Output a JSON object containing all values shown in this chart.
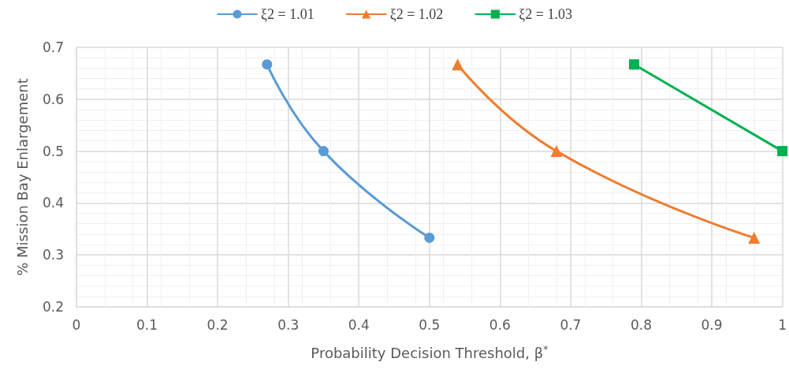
{
  "chart_data": {
    "type": "line",
    "xlabel": "Probability Decision Threshold, β$^{*}$",
    "ylabel": "% Mission Bay Enlargement",
    "xlim": [
      0,
      1
    ],
    "xticks": [
      0,
      0.1,
      0.2,
      0.3,
      0.4,
      0.5,
      0.6,
      0.7,
      0.8,
      0.9,
      1
    ],
    "ylim": [
      0.2,
      0.7
    ],
    "yticks": [
      0.2,
      0.3,
      0.4,
      0.5,
      0.6,
      0.7
    ],
    "grid": true,
    "legend": "top",
    "series": [
      {
        "name": "ξ2 = 1.01",
        "color": "#5b9bd5",
        "marker": "circle",
        "x": [
          0.27,
          0.35,
          0.5
        ],
        "values": [
          0.667,
          0.5,
          0.333
        ]
      },
      {
        "name": "ξ2 = 1.02",
        "color": "#ed7d31",
        "marker": "triangle",
        "x": [
          0.54,
          0.68,
          0.96
        ],
        "values": [
          0.667,
          0.5,
          0.333
        ]
      },
      {
        "name": "ξ2 = 1.03",
        "color": "#00b050",
        "marker": "square",
        "x": [
          0.79,
          1.0
        ],
        "values": [
          0.667,
          0.5
        ]
      }
    ]
  }
}
